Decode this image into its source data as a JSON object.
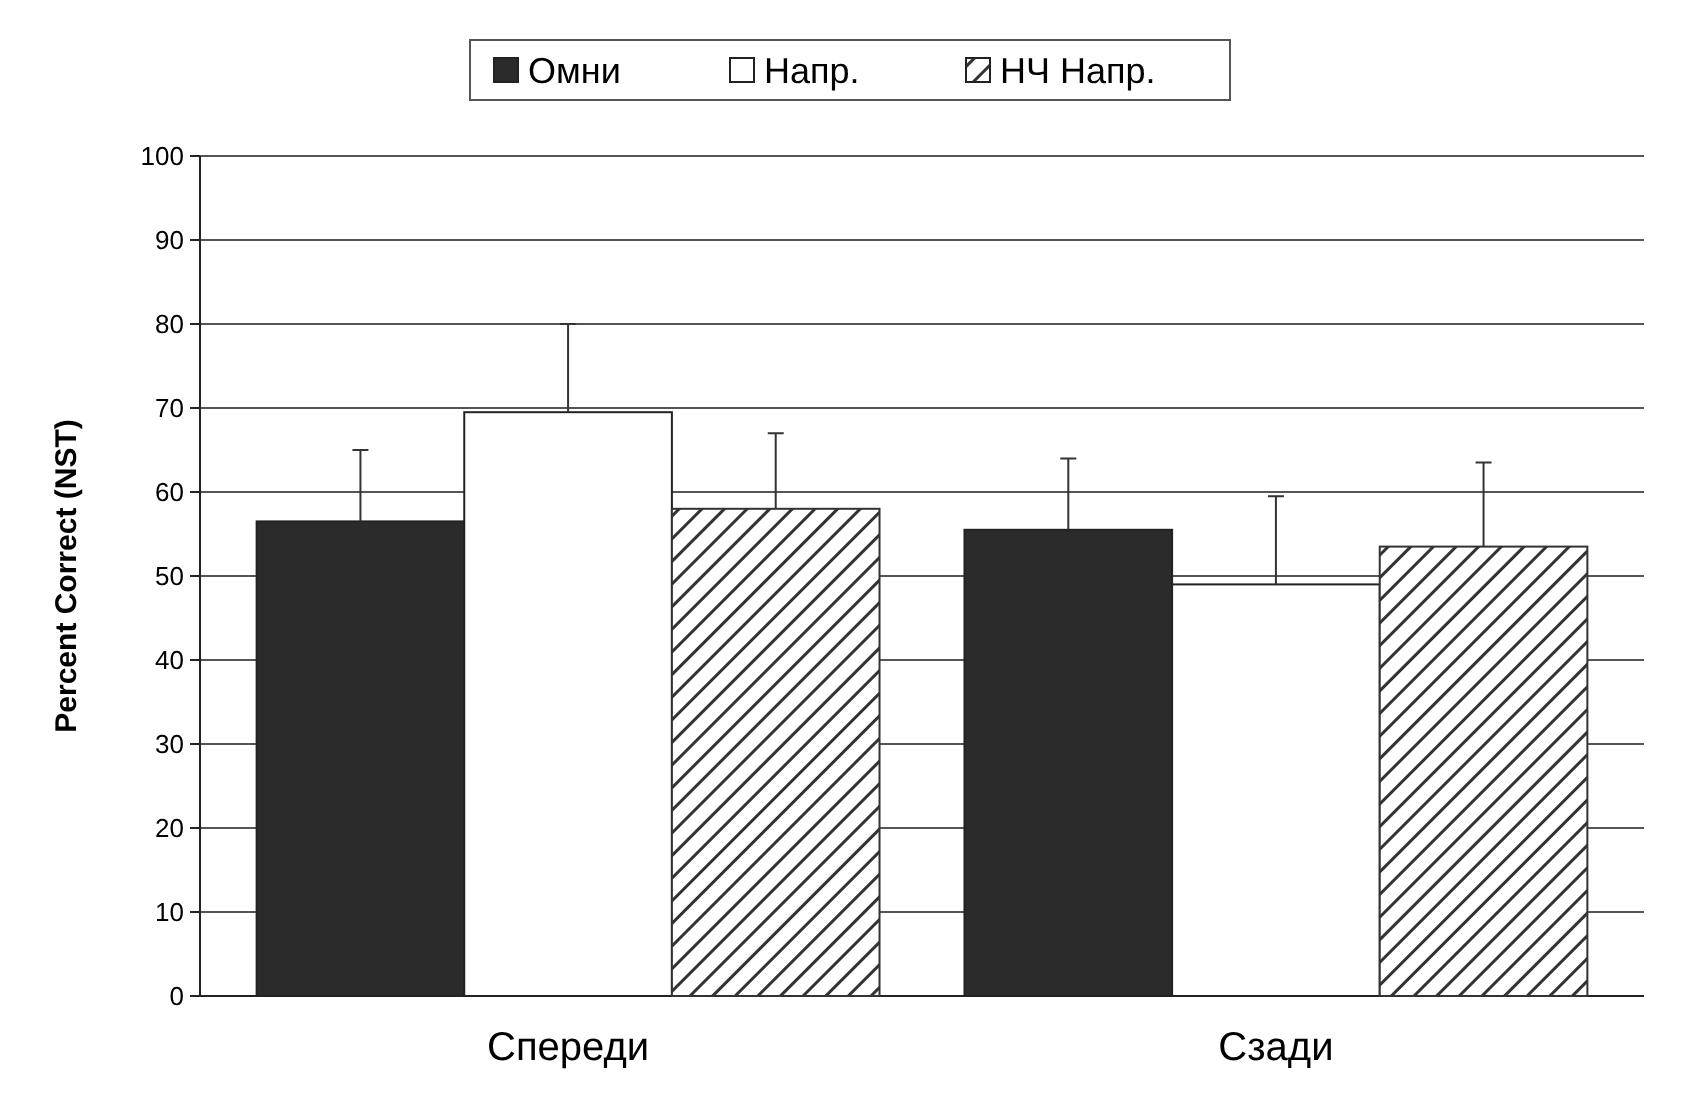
{
  "chart_data": {
    "type": "bar",
    "ylabel": "Percent Correct (NST)",
    "categories": [
      "Спереди",
      "Сзади"
    ],
    "series": [
      {
        "name": "Омни",
        "color": "#2b2b2b",
        "values": [
          56.5,
          55.5
        ],
        "errors": [
          [
            56.5,
            65
          ],
          [
            55.5,
            64
          ]
        ]
      },
      {
        "name": "Напр.",
        "color": "#ffffff",
        "values": [
          69.5,
          49
        ],
        "errors": [
          [
            69.5,
            80
          ],
          [
            49,
            59.5
          ]
        ]
      },
      {
        "name": "НЧ Напр.",
        "color": "#333333",
        "values": [
          58,
          53.5
        ],
        "errors": [
          [
            58,
            67
          ],
          [
            53.5,
            63.5
          ]
        ]
      }
    ],
    "ylim": [
      0,
      100
    ],
    "yticks": [
      0,
      10,
      20,
      30,
      40,
      50,
      60,
      70,
      80,
      90,
      100
    ],
    "grid": "y",
    "legend": "top"
  }
}
